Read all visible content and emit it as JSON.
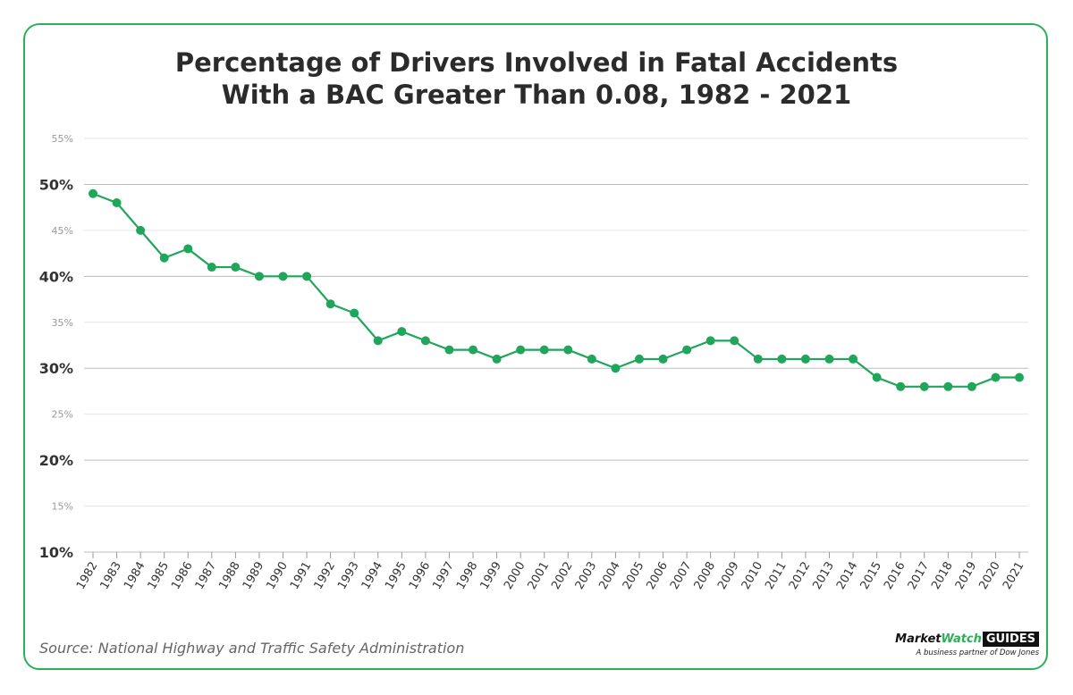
{
  "chart_data": {
    "type": "line",
    "title": "Percentage of Drivers Involved in Fatal Accidents With a BAC Greater Than 0.08, 1982 - 2021",
    "title_lines": [
      "Percentage of Drivers Involved in Fatal Accidents",
      "With a BAC Greater Than 0.08, 1982 - 2021"
    ],
    "xlabel": "",
    "ylabel": "",
    "ylim": [
      10,
      55
    ],
    "y_ticks": [
      "10%",
      "15%",
      "20%",
      "25%",
      "30%",
      "35%",
      "40%",
      "45%",
      "50%",
      "55%"
    ],
    "grid": true,
    "color": "#1fa65a",
    "x": [
      "1982",
      "1983",
      "1984",
      "1985",
      "1986",
      "1987",
      "1988",
      "1989",
      "1990",
      "1991",
      "1992",
      "1993",
      "1994",
      "1995",
      "1996",
      "1997",
      "1998",
      "1999",
      "2000",
      "2001",
      "2002",
      "2003",
      "2004",
      "2005",
      "2006",
      "2007",
      "2008",
      "2009",
      "2010",
      "2011",
      "2012",
      "2013",
      "2014",
      "2015",
      "2016",
      "2017",
      "2018",
      "2019",
      "2020",
      "2021"
    ],
    "values": [
      49,
      48,
      45,
      42,
      43,
      41,
      41,
      40,
      40,
      40,
      37,
      36,
      33,
      34,
      33,
      32,
      32,
      31,
      32,
      32,
      32,
      31,
      30,
      31,
      31,
      32,
      33,
      33,
      31,
      31,
      31,
      31,
      31,
      29,
      28,
      28,
      28,
      28,
      29,
      29
    ]
  },
  "footer": {
    "source": "Source: National Highway and Traffic Safety Administration",
    "logo_market": "Market",
    "logo_watch": "Watch",
    "logo_guides": "GUIDES",
    "logo_tagline": "A business partner of Dow Jones"
  }
}
